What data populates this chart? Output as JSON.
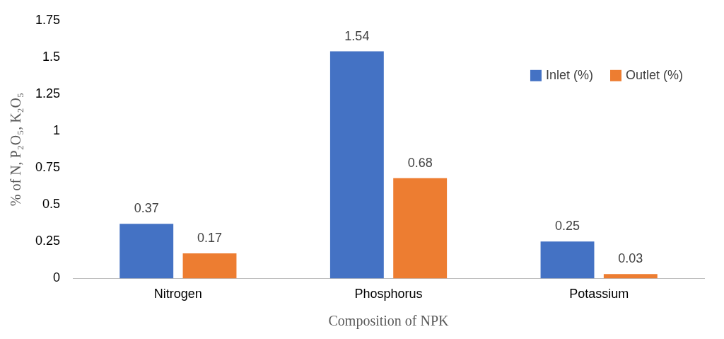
{
  "chart_data": {
    "type": "bar",
    "xlabel": "Composition of NPK",
    "ylabel": "% of N, P₂O₅, K₂O₅",
    "categories": [
      "Nitrogen",
      "Phosphorus",
      "Potassium"
    ],
    "series": [
      {
        "name": "Inlet (%)",
        "color": "#4472c4",
        "values": [
          0.37,
          1.54,
          0.25
        ]
      },
      {
        "name": "Outlet (%)",
        "color": "#ed7d31",
        "values": [
          0.17,
          0.68,
          0.03
        ]
      }
    ],
    "ylim": [
      0,
      1.75
    ],
    "yticks": [
      0,
      0.25,
      0.5,
      0.75,
      1,
      1.25,
      1.5,
      1.75
    ],
    "grid": false,
    "legend": "top right",
    "data_labels": true
  }
}
